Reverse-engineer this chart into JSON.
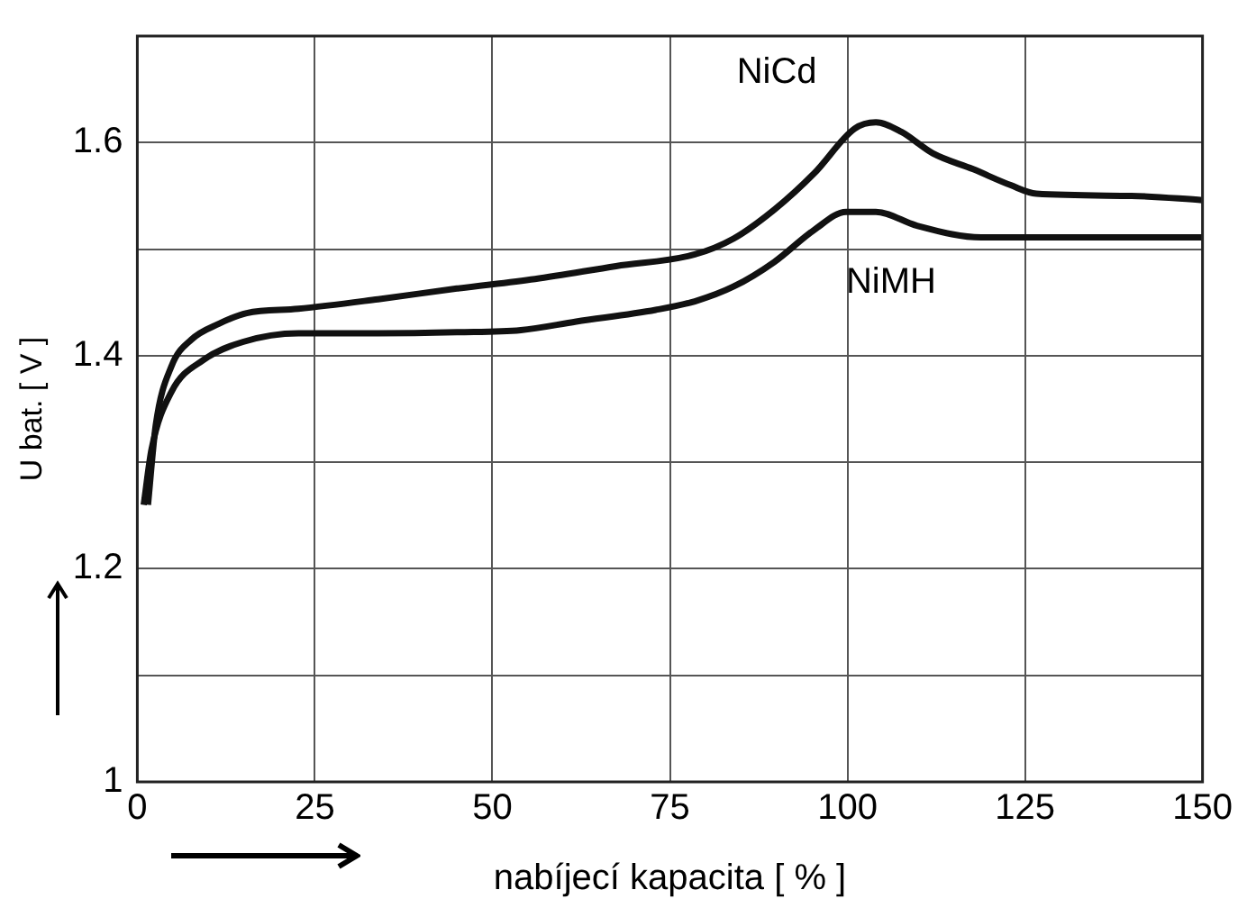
{
  "chart_data": {
    "type": "line",
    "xlabel": "nabíjecí kapacita [ % ]",
    "ylabel": "U bat. [ V ]",
    "xlim": [
      0,
      150
    ],
    "xticks": [
      0,
      25,
      50,
      75,
      100,
      125,
      150
    ],
    "ylim": [
      1,
      1.7
    ],
    "yticks": [
      1,
      {
        "value": 1.1,
        "label": null
      },
      1.2,
      {
        "value": 1.3,
        "label": null
      },
      1.4,
      {
        "value": 1.5,
        "label": null
      },
      1.6
    ],
    "grid": true,
    "legend": false,
    "marker": "none",
    "line_style": "solid",
    "series": [
      {
        "name": "NiCd",
        "color": "#111111",
        "x": [
          1.5,
          2.6,
          4.8,
          7.6,
          11.5,
          15.4,
          22.7,
          33.9,
          45,
          56,
          67.4,
          78.5,
          84,
          89.7,
          95.3,
          101,
          104,
          107.6,
          112,
          117.7,
          123,
          126.6,
          140,
          150
        ],
        "values": [
          1.26,
          1.335,
          1.39,
          1.415,
          1.43,
          1.44,
          1.444,
          1.453,
          1.463,
          1.472,
          1.484,
          1.495,
          1.51,
          1.537,
          1.571,
          1.613,
          1.619,
          1.61,
          1.59,
          1.575,
          1.56,
          1.552,
          1.55,
          1.546
        ]
      },
      {
        "name": "NiMH",
        "color": "#111111",
        "x": [
          0.9,
          2,
          4.8,
          9.3,
          14.9,
          22.7,
          33.9,
          45,
          54,
          61.8,
          73,
          78.5,
          84,
          89.7,
          95.3,
          99.8,
          104,
          109.8,
          118.8,
          134,
          150
        ],
        "values": [
          1.26,
          1.312,
          1.366,
          1.396,
          1.413,
          1.421,
          1.421,
          1.422,
          1.424,
          1.432,
          1.443,
          1.451,
          1.465,
          1.488,
          1.518,
          1.535,
          1.535,
          1.522,
          1.511,
          1.511,
          1.511
        ]
      }
    ]
  }
}
